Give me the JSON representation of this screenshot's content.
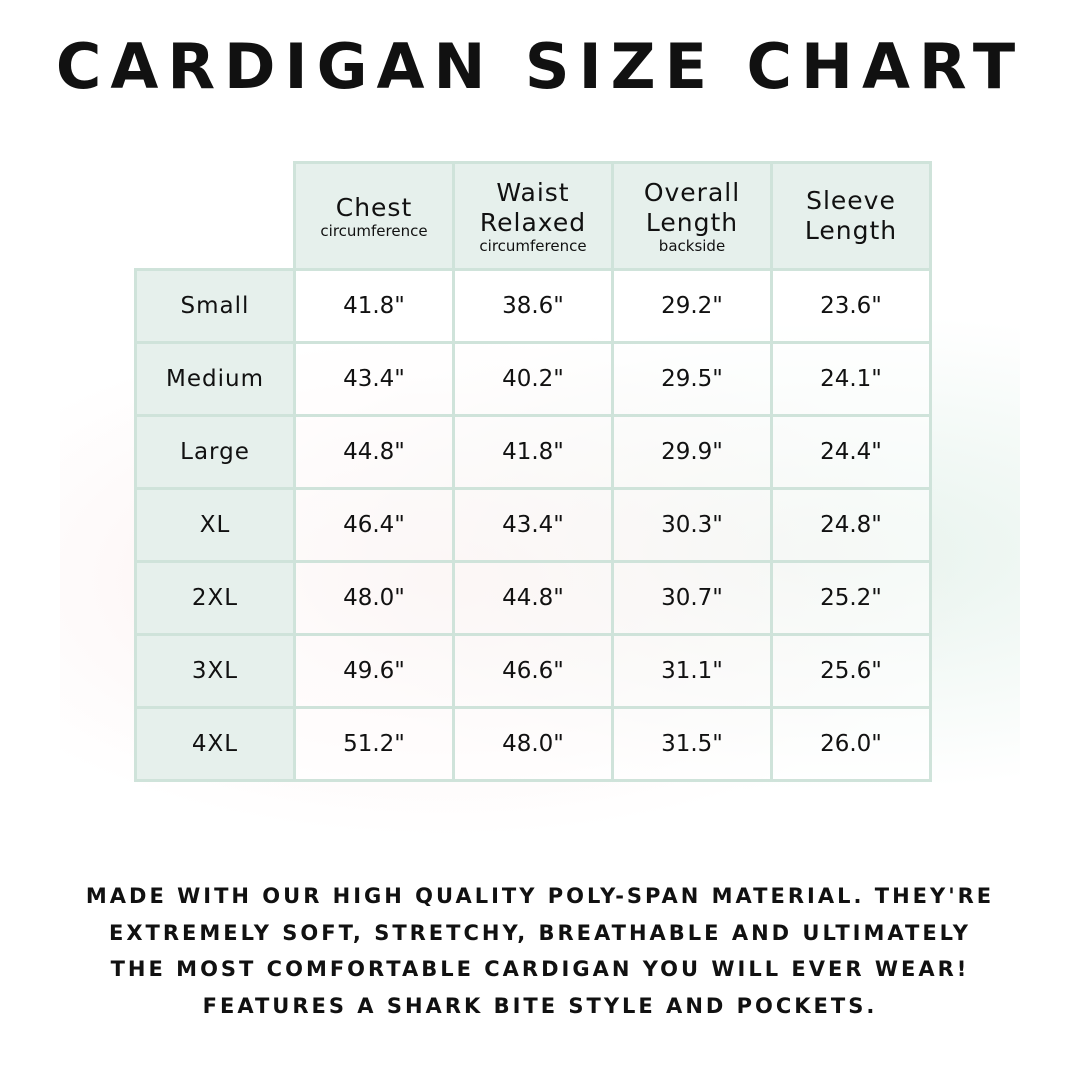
{
  "title": "CARDIGAN SIZE CHART",
  "table": {
    "headers": [
      {
        "main": "Chest",
        "sub": "circumference"
      },
      {
        "main": "Waist Relaxed",
        "sub": "circumference"
      },
      {
        "main": "Overall Length",
        "sub": "backside"
      },
      {
        "main": "Sleeve Length",
        "sub": ""
      }
    ],
    "rows": [
      {
        "size": "Small",
        "values": [
          "41.8\"",
          "38.6\"",
          "29.2\"",
          "23.6\""
        ]
      },
      {
        "size": "Medium",
        "values": [
          "43.4\"",
          "40.2\"",
          "29.5\"",
          "24.1\""
        ]
      },
      {
        "size": "Large",
        "values": [
          "44.8\"",
          "41.8\"",
          "29.9\"",
          "24.4\""
        ]
      },
      {
        "size": "XL",
        "values": [
          "46.4\"",
          "43.4\"",
          "30.3\"",
          "24.8\""
        ]
      },
      {
        "size": "2XL",
        "values": [
          "48.0\"",
          "44.8\"",
          "30.7\"",
          "25.2\""
        ]
      },
      {
        "size": "3XL",
        "values": [
          "49.6\"",
          "46.6\"",
          "31.1\"",
          "25.6\""
        ]
      },
      {
        "size": "4XL",
        "values": [
          "51.2\"",
          "48.0\"",
          "31.5\"",
          "26.0\""
        ]
      }
    ]
  },
  "footer": [
    "Made with our high quality poly-span material. They're",
    "extremely soft, stretchy, breathable and ultimately",
    "the most comfortable cardigan you will ever wear!",
    "Features a shark bite style and pockets."
  ],
  "colors": {
    "header_bg": "#e6f0ec",
    "border": "#cfe3da"
  }
}
